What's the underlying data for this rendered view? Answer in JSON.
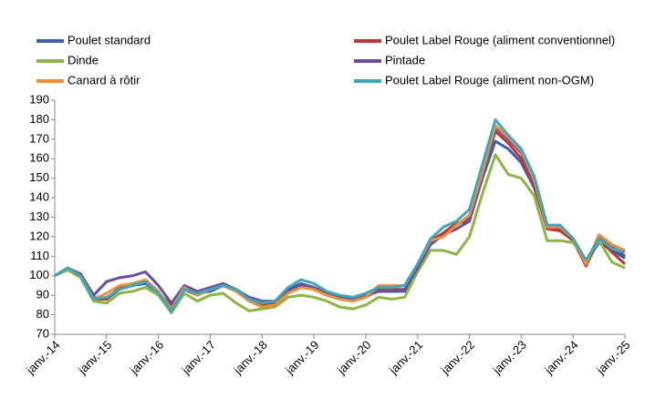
{
  "chart_data": {
    "type": "line",
    "x": [
      2014,
      2014.25,
      2014.5,
      2014.75,
      2015,
      2015.25,
      2015.5,
      2015.75,
      2016,
      2016.25,
      2016.5,
      2016.75,
      2017,
      2017.25,
      2017.5,
      2017.75,
      2018,
      2018.25,
      2018.5,
      2018.75,
      2019,
      2019.25,
      2019.5,
      2019.75,
      2020,
      2020.25,
      2020.5,
      2020.75,
      2021,
      2021.25,
      2021.5,
      2021.75,
      2022,
      2022.25,
      2022.5,
      2022.75,
      2023,
      2023.25,
      2023.5,
      2023.75,
      2024,
      2024.25,
      2024.5,
      2024.75,
      2025
    ],
    "series": [
      {
        "name": "Poulet standard",
        "color": "#3c5fa8",
        "values": [
          100,
          104,
          100,
          89,
          88,
          93,
          95,
          96,
          91,
          85,
          93,
          91,
          92,
          95,
          92,
          88,
          86,
          86,
          93,
          96,
          94,
          91,
          89,
          88,
          90,
          92,
          92,
          92,
          104,
          117,
          121,
          126,
          130,
          150,
          169,
          165,
          158,
          145,
          126,
          124,
          118,
          107,
          117,
          113,
          109
        ]
      },
      {
        "name": "Poulet Label Rouge (aliment conventionnel)",
        "color": "#b83a32",
        "values": [
          100,
          104,
          100,
          88,
          88,
          94,
          96,
          97,
          91,
          84,
          93,
          90,
          93,
          96,
          93,
          88,
          85,
          86,
          92,
          95,
          93,
          90,
          88,
          87,
          89,
          93,
          93,
          93,
          105,
          118,
          122,
          127,
          128,
          152,
          174,
          168,
          160,
          146,
          124,
          123,
          118,
          105,
          119,
          112,
          106
        ]
      },
      {
        "name": "Dinde",
        "color": "#8cb545",
        "values": [
          100,
          103,
          99,
          87,
          86,
          91,
          92,
          94,
          90,
          81,
          91,
          87,
          90,
          91,
          86,
          82,
          83,
          84,
          89,
          90,
          89,
          87,
          84,
          83,
          85,
          89,
          88,
          89,
          102,
          113,
          113,
          111,
          120,
          142,
          162,
          152,
          150,
          141,
          118,
          118,
          117,
          108,
          118,
          107,
          104
        ]
      },
      {
        "name": "Pintade",
        "color": "#6a4d9d",
        "values": [
          100,
          104,
          101,
          90,
          97,
          99,
          100,
          102,
          95,
          86,
          95,
          92,
          94,
          96,
          93,
          89,
          87,
          87,
          92,
          95,
          94,
          91,
          88,
          88,
          90,
          92,
          92,
          93,
          104,
          116,
          121,
          124,
          128,
          150,
          176,
          170,
          163,
          148,
          126,
          125,
          119,
          107,
          120,
          115,
          110
        ]
      },
      {
        "name": "Canard à rôtir",
        "color": "#e9913c",
        "values": [
          100,
          104,
          100,
          88,
          91,
          95,
          96,
          98,
          92,
          83,
          94,
          90,
          93,
          95,
          92,
          87,
          84,
          85,
          91,
          94,
          93,
          90,
          88,
          87,
          89,
          95,
          95,
          95,
          106,
          118,
          120,
          126,
          131,
          153,
          177,
          171,
          164,
          149,
          125,
          125,
          119,
          106,
          121,
          116,
          113
        ]
      },
      {
        "name": "Poulet Label Rouge (aliment non-OGM)",
        "color": "#41a6ba",
        "values": [
          100,
          104,
          100,
          88,
          89,
          93,
          95,
          97,
          91,
          82,
          93,
          91,
          93,
          95,
          93,
          88,
          86,
          87,
          94,
          98,
          96,
          92,
          90,
          89,
          91,
          94,
          94,
          95,
          106,
          119,
          125,
          128,
          134,
          157,
          180,
          172,
          165,
          151,
          126,
          126,
          119,
          108,
          119,
          114,
          112
        ]
      }
    ],
    "ylim": [
      70,
      190
    ],
    "yticks": [
      70,
      80,
      90,
      100,
      110,
      120,
      130,
      140,
      150,
      160,
      170,
      180,
      190
    ],
    "xlim": [
      2014,
      2025
    ],
    "xticks": [
      {
        "value": 2014,
        "label": "janv.-14"
      },
      {
        "value": 2015,
        "label": "janv.-15"
      },
      {
        "value": 2016,
        "label": "janv.-16"
      },
      {
        "value": 2017,
        "label": "janv.-17"
      },
      {
        "value": 2018,
        "label": "janv.-18"
      },
      {
        "value": 2019,
        "label": "janv.-19"
      },
      {
        "value": 2020,
        "label": "janv.-20"
      },
      {
        "value": 2021,
        "label": "janv.-21"
      },
      {
        "value": 2022,
        "label": "janv.-22"
      },
      {
        "value": 2023,
        "label": "janv.-23"
      },
      {
        "value": 2024,
        "label": "janv.-24"
      },
      {
        "value": 2025,
        "label": "janv.-25"
      }
    ],
    "grid": false
  }
}
